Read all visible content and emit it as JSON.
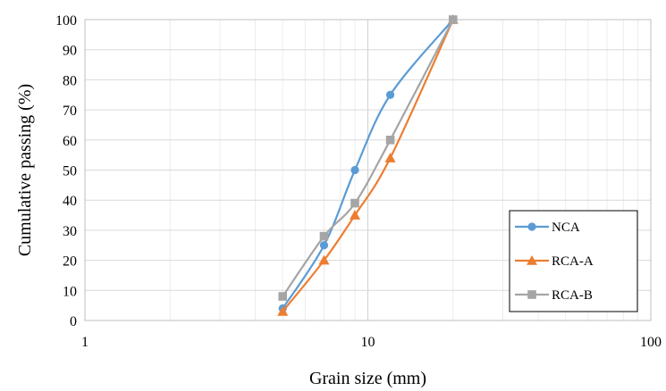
{
  "chart_data": {
    "type": "line",
    "xlabel": "Grain size (mm)",
    "ylabel": "Cumulative passing (%)",
    "xscale": "log",
    "xlim": [
      1,
      100
    ],
    "ylim": [
      0,
      100
    ],
    "x_ticks": [
      1,
      10,
      100
    ],
    "x_tick_labels": [
      "1",
      "10",
      "100"
    ],
    "y_ticks": [
      0,
      10,
      20,
      30,
      40,
      50,
      60,
      70,
      80,
      90,
      100
    ],
    "y_tick_labels": [
      "0",
      "10",
      "20",
      "30",
      "40",
      "50",
      "60",
      "70",
      "80",
      "90",
      "100"
    ],
    "grid": "major and minor vertical, major horizontal",
    "legend_position": "bottom-right",
    "series": [
      {
        "name": "NCA",
        "marker": "circle",
        "color": "#5B9BD5",
        "x": [
          5,
          7,
          9,
          12,
          20
        ],
        "y": [
          4,
          25,
          50,
          75,
          100
        ]
      },
      {
        "name": "RCA-A",
        "marker": "triangle",
        "color": "#ED7D31",
        "x": [
          5,
          7,
          9,
          12,
          20
        ],
        "y": [
          3,
          20,
          35,
          54,
          100
        ]
      },
      {
        "name": "RCA-B",
        "marker": "square",
        "color": "#A5A5A5",
        "x": [
          5,
          7,
          9,
          12,
          20
        ],
        "y": [
          8,
          28,
          39,
          60,
          100
        ]
      }
    ]
  }
}
